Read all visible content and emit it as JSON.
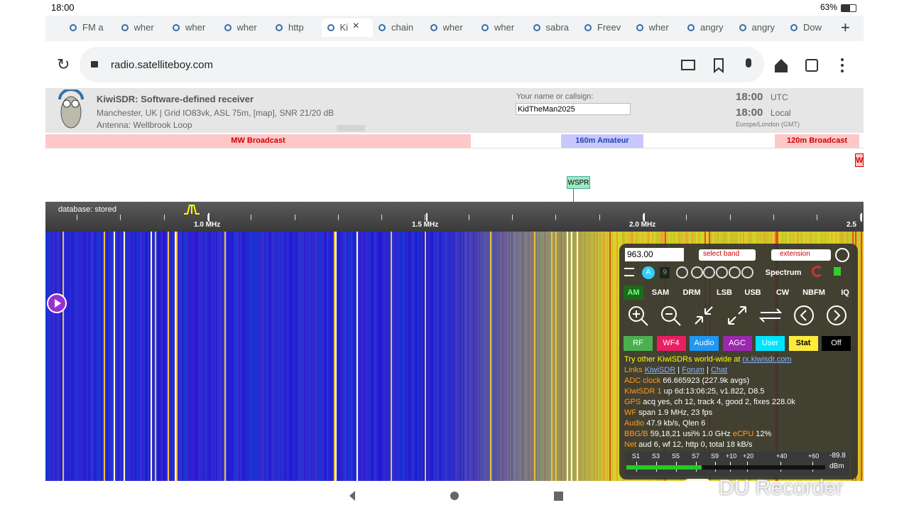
{
  "status_bar": {
    "time": "18:00",
    "battery": "63%"
  },
  "tabs": [
    "FM a",
    "wher",
    "wher",
    "wher",
    "http",
    "Ki",
    "chain",
    "wher",
    "wher",
    "sabra",
    "Freev",
    "wher",
    "angry",
    "angry",
    "Dow"
  ],
  "url": "radio.satelliteboy.com",
  "header": {
    "title": "KiwiSDR: Software-defined receiver",
    "location": "Manchester, UK | Grid IO83vk, ASL 75m, [map], SNR 21/20 dB",
    "antenna": "Antenna: Wellbrook Loop",
    "name_label": "Your name or callsign:",
    "name_value": "KidTheMan2025",
    "utc_time": "18:00",
    "utc_label": "UTC",
    "local_time": "18:00",
    "local_label": "Local",
    "timezone": "Europe/London (GMT)"
  },
  "bands": [
    "MW Broadcast",
    "160m Amateur",
    "120m Broadcast",
    "W"
  ],
  "marker": "WSPR",
  "database": "database: stored",
  "scale": [
    "1.0 MHz",
    "1.5 MHz",
    "2.0 MHz",
    "2.5"
  ],
  "panel": {
    "frequency": "963.00",
    "select_band": "select band",
    "extension": "extension",
    "badge_a": "A",
    "badge_9": "9",
    "spectrum": "Spectrum",
    "modes": [
      "AM",
      "SAM",
      "DRM",
      "LSB",
      "USB",
      "CW",
      "NBFM",
      "IQ"
    ],
    "buttons": [
      "RF",
      "WF4",
      "Audio",
      "AGC",
      "User",
      "Stat",
      "Off"
    ],
    "try_text": "Try other KiwiSDRs world-wide at",
    "try_link": "rx.kiwisdr.com",
    "links_label": "Links",
    "links": [
      "KiwiSDR",
      "Forum",
      "Chat"
    ],
    "status": [
      {
        "key": "ADC clock",
        "value": "66.665923 (227.9k avgs)"
      },
      {
        "key": "KiwiSDR 1",
        "value": "up 6d:13:06:25, v1.822, D8.5"
      },
      {
        "key": "GPS",
        "value": "acq yes, ch 12, track 4, good 2, fixes 228.0k"
      },
      {
        "key": "WF",
        "value": "span 1.9 MHz, 23 fps"
      },
      {
        "key": "Audio",
        "value": "47.9 kb/s, Qlen 6"
      },
      {
        "key": "BBG/B",
        "value": "59,18,21 usi% 1.0 GHz"
      },
      {
        "key": "Net",
        "value": "aud 6, wf 12, http 0, total 18 kB/s"
      }
    ],
    "ecpu_key": "eCPU",
    "ecpu_value": "12%",
    "smeter": [
      "S1",
      "S3",
      "S5",
      "S7",
      "S9",
      "+10",
      "+20",
      "+40",
      "+60"
    ],
    "smeter_reading": "-89.8",
    "smeter_unit": "dBm"
  },
  "watermark": "DU Recorder"
}
